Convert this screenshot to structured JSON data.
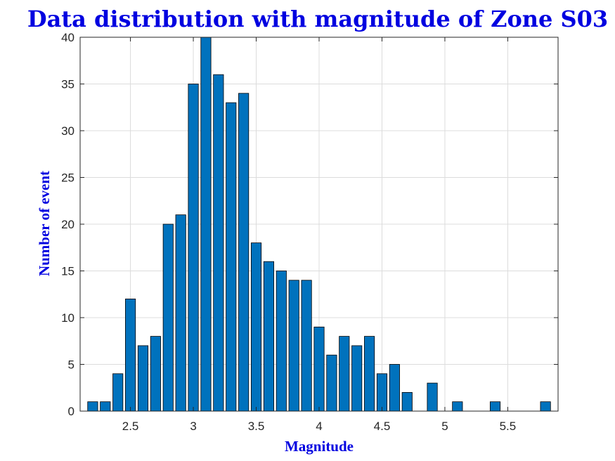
{
  "chart_data": {
    "type": "bar",
    "title": "Data distribution with magnitude of Zone S03",
    "xlabel": "Magnitude",
    "ylabel": "Number of event",
    "xlim": [
      2.1,
      5.9
    ],
    "ylim": [
      0,
      40
    ],
    "xticks": [
      "2.5",
      "3",
      "3.5",
      "4",
      "4.5",
      "5",
      "5.5"
    ],
    "yticks": [
      "0",
      "5",
      "10",
      "15",
      "20",
      "25",
      "30",
      "35",
      "40"
    ],
    "grid": true,
    "bar_color": "#0072BD",
    "bar_width": 0.08,
    "x": [
      2.2,
      2.3,
      2.4,
      2.5,
      2.6,
      2.7,
      2.8,
      2.9,
      3.0,
      3.1,
      3.2,
      3.3,
      3.4,
      3.5,
      3.6,
      3.7,
      3.8,
      3.9,
      4.0,
      4.1,
      4.2,
      4.3,
      4.4,
      4.5,
      4.6,
      4.7,
      4.8,
      4.9,
      5.0,
      5.1,
      5.2,
      5.3,
      5.4,
      5.5,
      5.6,
      5.7,
      5.8
    ],
    "values": [
      1,
      1,
      4,
      12,
      7,
      8,
      20,
      21,
      35,
      40,
      36,
      33,
      34,
      18,
      16,
      15,
      14,
      14,
      9,
      6,
      8,
      7,
      8,
      4,
      5,
      2,
      0,
      3,
      0,
      1,
      0,
      0,
      1,
      0,
      0,
      0,
      1
    ]
  }
}
